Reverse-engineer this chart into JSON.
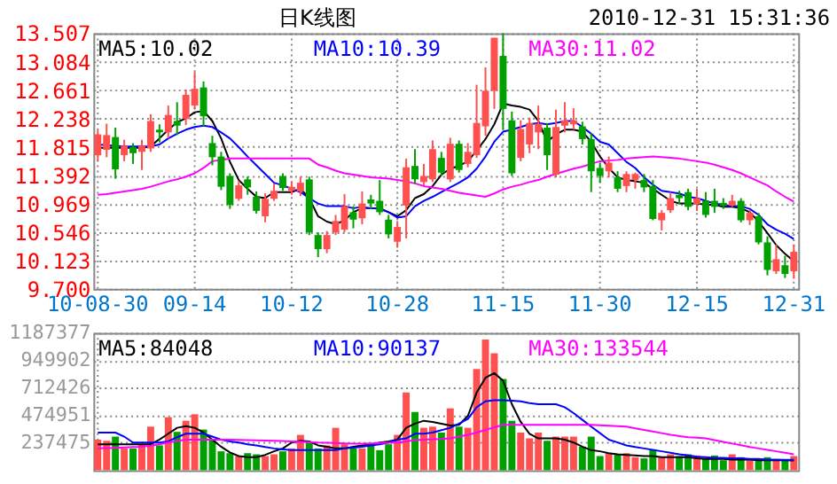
{
  "chart_data": [
    {
      "type": "candlestick",
      "title": "日K线图",
      "subtitle": "2010-12-31 15:31:36",
      "categories": [
        "10-08-30",
        null,
        null,
        null,
        null,
        null,
        null,
        null,
        null,
        null,
        null,
        "09-14",
        null,
        null,
        null,
        null,
        null,
        null,
        null,
        null,
        null,
        null,
        "10-12",
        null,
        null,
        null,
        null,
        null,
        null,
        null,
        null,
        null,
        null,
        null,
        "10-28",
        null,
        null,
        null,
        null,
        null,
        null,
        null,
        null,
        null,
        null,
        null,
        "11-15",
        null,
        null,
        null,
        null,
        null,
        null,
        null,
        null,
        null,
        null,
        "11-30",
        null,
        null,
        null,
        null,
        null,
        null,
        null,
        null,
        null,
        null,
        "12-15",
        null,
        null,
        null,
        null,
        null,
        null,
        null,
        null,
        null,
        null,
        "12-31"
      ],
      "ohlc": [
        [
          11.69,
          12.07,
          11.6,
          12.0
        ],
        [
          11.77,
          12.16,
          11.66,
          11.99
        ],
        [
          11.96,
          12.1,
          11.34,
          11.48
        ],
        [
          11.69,
          11.92,
          11.6,
          11.83
        ],
        [
          11.81,
          11.87,
          11.56,
          11.72
        ],
        [
          11.74,
          11.92,
          11.47,
          11.83
        ],
        [
          11.79,
          12.3,
          11.74,
          12.2
        ],
        [
          12.07,
          12.15,
          11.88,
          12.03
        ],
        [
          12.03,
          12.43,
          11.94,
          12.29
        ],
        [
          12.2,
          12.48,
          11.99,
          12.13
        ],
        [
          12.23,
          12.67,
          12.14,
          12.59
        ],
        [
          12.43,
          12.93,
          12.37,
          12.68
        ],
        [
          12.7,
          12.79,
          12.12,
          12.27
        ],
        [
          11.87,
          11.98,
          11.54,
          11.66
        ],
        [
          11.67,
          11.74,
          11.17,
          11.22
        ],
        [
          11.38,
          11.42,
          10.89,
          10.95
        ],
        [
          11.04,
          11.31,
          11.01,
          11.24
        ],
        [
          11.33,
          11.37,
          11.1,
          11.21
        ],
        [
          11.07,
          11.15,
          10.82,
          10.86
        ],
        [
          10.78,
          11.12,
          10.69,
          11.04
        ],
        [
          11.04,
          11.27,
          11.01,
          11.16
        ],
        [
          11.38,
          11.42,
          11.16,
          11.2
        ],
        [
          11.16,
          11.3,
          11.1,
          11.22
        ],
        [
          11.15,
          11.37,
          11.08,
          11.28
        ],
        [
          11.33,
          11.37,
          10.5,
          10.54
        ],
        [
          10.5,
          10.54,
          10.17,
          10.29
        ],
        [
          10.29,
          10.56,
          10.23,
          10.5
        ],
        [
          10.54,
          10.8,
          10.5,
          10.71
        ],
        [
          10.58,
          11.11,
          10.54,
          10.93
        ],
        [
          10.84,
          10.93,
          10.6,
          10.73
        ],
        [
          10.75,
          11.15,
          10.66,
          10.97
        ],
        [
          11.03,
          11.1,
          10.89,
          10.97
        ],
        [
          11.01,
          11.32,
          10.8,
          10.84
        ],
        [
          10.73,
          10.8,
          10.45,
          10.51
        ],
        [
          10.4,
          10.71,
          10.31,
          10.62
        ],
        [
          10.94,
          11.64,
          10.45,
          11.51
        ],
        [
          11.53,
          11.78,
          11.26,
          11.33
        ],
        [
          11.29,
          11.56,
          11.24,
          11.38
        ],
        [
          11.33,
          11.91,
          11.29,
          11.78
        ],
        [
          11.65,
          11.74,
          11.38,
          11.43
        ],
        [
          11.33,
          11.95,
          11.29,
          11.86
        ],
        [
          11.86,
          11.91,
          11.43,
          11.47
        ],
        [
          11.56,
          11.87,
          11.51,
          11.74
        ],
        [
          11.69,
          12.74,
          11.65,
          12.17
        ],
        [
          12.12,
          13.0,
          11.98,
          12.65
        ],
        [
          12.65,
          13.44,
          12.38,
          13.44
        ],
        [
          13.17,
          13.507,
          12.07,
          12.38
        ],
        [
          12.21,
          12.34,
          11.38,
          11.42
        ],
        [
          11.65,
          12.21,
          11.6,
          12.08
        ],
        [
          11.85,
          12.25,
          11.72,
          12.17
        ],
        [
          12.03,
          12.43,
          11.78,
          12.16
        ],
        [
          12.1,
          12.17,
          11.47,
          11.69
        ],
        [
          11.4,
          12.37,
          11.36,
          12.11
        ],
        [
          12.13,
          12.48,
          12.03,
          12.21
        ],
        [
          12.15,
          12.39,
          12.07,
          12.21
        ],
        [
          12.12,
          12.19,
          11.85,
          11.93
        ],
        [
          11.93,
          12.02,
          11.14,
          11.45
        ],
        [
          11.5,
          11.58,
          11.28,
          11.38
        ],
        [
          11.45,
          11.67,
          11.36,
          11.58
        ],
        [
          11.36,
          11.45,
          11.14,
          11.19
        ],
        [
          11.23,
          11.45,
          11.14,
          11.41
        ],
        [
          11.32,
          11.43,
          11.19,
          11.41
        ],
        [
          11.32,
          11.41,
          11.14,
          11.21
        ],
        [
          11.23,
          11.32,
          10.72,
          10.74
        ],
        [
          10.72,
          10.87,
          10.57,
          10.83
        ],
        [
          10.87,
          11.14,
          10.83,
          11.05
        ],
        [
          11.1,
          11.16,
          10.96,
          11.05
        ],
        [
          11.14,
          11.19,
          10.87,
          10.92
        ],
        [
          10.96,
          11.19,
          10.86,
          11.05
        ],
        [
          11.01,
          11.14,
          10.76,
          10.8
        ],
        [
          11.01,
          11.19,
          10.83,
          10.92
        ],
        [
          10.98,
          11.05,
          10.89,
          10.94
        ],
        [
          10.94,
          11.1,
          10.92,
          11.01
        ],
        [
          11.01,
          11.05,
          10.69,
          10.72
        ],
        [
          10.72,
          10.87,
          10.65,
          10.83
        ],
        [
          10.78,
          10.83,
          10.36,
          10.39
        ],
        [
          10.39,
          10.48,
          9.9,
          9.98
        ],
        [
          9.96,
          10.36,
          9.92,
          10.14
        ],
        [
          10.05,
          10.19,
          9.86,
          9.92
        ],
        [
          9.96,
          10.36,
          9.85,
          10.25
        ]
      ],
      "colors": [
        "#ff5050",
        "#ff5050",
        "#00a000",
        "#ff5050",
        "#00a000",
        "#ff5050",
        "#ff5050",
        "#00a000",
        "#ff5050",
        "#00a000",
        "#ff5050",
        "#ff5050",
        "#00a000",
        "#00a000",
        "#00a000",
        "#00a000",
        "#ff5050",
        "#00a000",
        "#00a000",
        "#ff5050",
        "#ff5050",
        "#00a000",
        "#ff5050",
        "#ff5050",
        "#00a000",
        "#00a000",
        "#ff5050",
        "#ff5050",
        "#ff5050",
        "#00a000",
        "#ff5050",
        "#00a000",
        "#00a000",
        "#00a000",
        "#ff5050",
        "#ff5050",
        "#00a000",
        "#ff5050",
        "#ff5050",
        "#00a000",
        "#ff5050",
        "#00a000",
        "#ff5050",
        "#ff5050",
        "#ff5050",
        "#ff5050",
        "#00a000",
        "#00a000",
        "#ff5050",
        "#ff5050",
        "#ff5050",
        "#00a000",
        "#ff5050",
        "#ff5050",
        "#ff5050",
        "#00a000",
        "#00a000",
        "#00a000",
        "#ff5050",
        "#00a000",
        "#ff5050",
        "#ff5050",
        "#00a000",
        "#00a000",
        "#ff5050",
        "#ff5050",
        "#00a000",
        "#00a000",
        "#ff5050",
        "#00a000",
        "#00a000",
        "#00a000",
        "#ff5050",
        "#00a000",
        "#ff5050",
        "#00a000",
        "#00a000",
        "#ff5050",
        "#00a000",
        "#ff5050"
      ],
      "series": [
        {
          "name": "MA5:10.02",
          "type": "line",
          "color": "#000000",
          "values": [
            11.8,
            11.8,
            11.8,
            11.8,
            11.8,
            11.8,
            11.82,
            11.94,
            12.07,
            12.18,
            12.24,
            12.33,
            12.35,
            12.2,
            11.94,
            11.59,
            11.32,
            11.19,
            11.07,
            11.05,
            11.14,
            11.14,
            11.14,
            11.19,
            11.05,
            10.78,
            10.7,
            10.66,
            10.72,
            10.84,
            10.9,
            10.9,
            10.9,
            10.84,
            10.78,
            10.87,
            11.05,
            11.11,
            11.23,
            11.4,
            11.49,
            11.53,
            11.6,
            11.76,
            11.93,
            12.15,
            12.46,
            12.43,
            12.41,
            12.37,
            12.2,
            11.89,
            12.0,
            12.07,
            12.07,
            12.04,
            11.89,
            11.67,
            11.5,
            11.36,
            11.32,
            11.3,
            11.28,
            11.19,
            11.1,
            11.01,
            10.97,
            10.97,
            10.97,
            10.95,
            10.95,
            10.92,
            10.92,
            10.9,
            10.84,
            10.7,
            10.53,
            10.35,
            10.22,
            10.11
          ]
        },
        {
          "name": "MA10:10.39",
          "type": "line",
          "color": "#0000ff",
          "values": [
            11.85,
            11.84,
            11.83,
            11.82,
            11.82,
            11.82,
            11.82,
            11.85,
            11.94,
            12.01,
            12.07,
            12.11,
            12.13,
            12.11,
            12.03,
            11.94,
            11.81,
            11.67,
            11.54,
            11.41,
            11.28,
            11.24,
            11.19,
            11.14,
            11.05,
            10.97,
            10.93,
            10.93,
            10.93,
            10.9,
            10.92,
            10.9,
            10.89,
            10.84,
            10.76,
            10.78,
            10.93,
            11.01,
            11.07,
            11.14,
            11.21,
            11.28,
            11.36,
            11.49,
            11.67,
            11.89,
            12.04,
            12.07,
            12.11,
            12.15,
            12.17,
            12.15,
            12.17,
            12.2,
            12.2,
            12.11,
            12.01,
            11.89,
            11.85,
            11.72,
            11.59,
            11.5,
            11.36,
            11.25,
            11.16,
            11.14,
            11.12,
            11.07,
            11.05,
            11.01,
            10.97,
            10.95,
            10.93,
            10.93,
            10.89,
            10.8,
            10.66,
            10.58,
            10.52,
            10.44
          ]
        },
        {
          "name": "MA30:11.02",
          "type": "line",
          "color": "#ff00ff",
          "values": [
            11.1,
            11.11,
            11.13,
            11.15,
            11.17,
            11.19,
            11.22,
            11.26,
            11.3,
            11.33,
            11.37,
            11.42,
            11.5,
            11.6,
            11.62,
            11.64,
            11.64,
            11.64,
            11.64,
            11.64,
            11.64,
            11.64,
            11.64,
            11.64,
            11.64,
            11.55,
            11.51,
            11.46,
            11.42,
            11.4,
            11.38,
            11.36,
            11.35,
            11.34,
            11.32,
            11.3,
            11.27,
            11.23,
            11.21,
            11.19,
            11.16,
            11.13,
            11.11,
            11.09,
            11.07,
            11.12,
            11.18,
            11.22,
            11.25,
            11.29,
            11.32,
            11.37,
            11.41,
            11.45,
            11.49,
            11.52,
            11.56,
            11.6,
            11.61,
            11.62,
            11.64,
            11.65,
            11.66,
            11.67,
            11.66,
            11.65,
            11.64,
            11.62,
            11.6,
            11.58,
            11.55,
            11.51,
            11.47,
            11.42,
            11.36,
            11.3,
            11.24,
            11.15,
            11.07,
            11.0
          ]
        }
      ],
      "ylim": [
        9.7,
        13.507
      ],
      "yticks": [
        {
          "value": 9.7,
          "label": "9.700"
        },
        10.123,
        10.546,
        10.969,
        11.392,
        11.815,
        12.238,
        12.661,
        13.084,
        13.507
      ],
      "grid": true,
      "legend": "top"
    },
    {
      "type": "bar",
      "categories": [
        null,
        null,
        null,
        null,
        null,
        null,
        null,
        null,
        null,
        null,
        null,
        null,
        null,
        null,
        null,
        null,
        null,
        null,
        null,
        null,
        null,
        null,
        null,
        null,
        null,
        null,
        null,
        null,
        null,
        null,
        null,
        null,
        null,
        null,
        null,
        null,
        null,
        null,
        null,
        null,
        null,
        null,
        null,
        null,
        null,
        null,
        null,
        null,
        null,
        null,
        null,
        null,
        null,
        null,
        null,
        null,
        null,
        null,
        null,
        null,
        null,
        null,
        null,
        null,
        null,
        null,
        null,
        null,
        null,
        null,
        null,
        null,
        null,
        null,
        null,
        null,
        null,
        null,
        null,
        null
      ],
      "series": [
        {
          "type": "bar",
          "values": [
            264000,
            254000,
            290000,
            188000,
            188000,
            224000,
            376000,
            214000,
            458000,
            331000,
            427000,
            483000,
            351000,
            264000,
            163000,
            147000,
            122000,
            147000,
            137000,
            122000,
            137000,
            163000,
            188000,
            305000,
            239000,
            188000,
            214000,
            366000,
            224000,
            188000,
            188000,
            214000,
            173000,
            224000,
            305000,
            671000,
            503000,
            366000,
            376000,
            325000,
            534000,
            376000,
            366000,
            875000,
            1130000,
            1010000,
            788000,
            427000,
            325000,
            275000,
            325000,
            254000,
            290000,
            290000,
            290000,
            203000,
            290000,
            122000,
            147000,
            137000,
            147000,
            112000,
            102000,
            173000,
            112000,
            137000,
            122000,
            137000,
            127000,
            102000,
            127000,
            86000,
            137000,
            112000,
            86000,
            102000,
            112000,
            86000,
            86000,
            122000
          ],
          "colors": [
            "#ff5050",
            "#ff5050",
            "#00a000",
            "#ff5050",
            "#00a000",
            "#ff5050",
            "#ff5050",
            "#00a000",
            "#ff5050",
            "#00a000",
            "#ff5050",
            "#ff5050",
            "#00a000",
            "#00a000",
            "#00a000",
            "#00a000",
            "#ff5050",
            "#00a000",
            "#00a000",
            "#ff5050",
            "#ff5050",
            "#00a000",
            "#ff5050",
            "#ff5050",
            "#00a000",
            "#00a000",
            "#ff5050",
            "#ff5050",
            "#ff5050",
            "#00a000",
            "#ff5050",
            "#00a000",
            "#00a000",
            "#00a000",
            "#ff5050",
            "#ff5050",
            "#00a000",
            "#ff5050",
            "#ff5050",
            "#00a000",
            "#ff5050",
            "#00a000",
            "#ff5050",
            "#ff5050",
            "#ff5050",
            "#ff5050",
            "#00a000",
            "#00a000",
            "#ff5050",
            "#ff5050",
            "#ff5050",
            "#00a000",
            "#ff5050",
            "#ff5050",
            "#ff5050",
            "#00a000",
            "#00a000",
            "#00a000",
            "#ff5050",
            "#00a000",
            "#ff5050",
            "#ff5050",
            "#00a000",
            "#00a000",
            "#ff5050",
            "#ff5050",
            "#00a000",
            "#00a000",
            "#ff5050",
            "#00a000",
            "#00a000",
            "#00a000",
            "#ff5050",
            "#00a000",
            "#ff5050",
            "#00a000",
            "#00a000",
            "#ff5050",
            "#00a000",
            "#ff5050"
          ]
        },
        {
          "name": "MA5:84048",
          "type": "line",
          "color": "#000000",
          "values": [
            224000,
            224000,
            224000,
            224000,
            224000,
            224000,
            224000,
            264000,
            315000,
            366000,
            381000,
            366000,
            325000,
            264000,
            203000,
            153000,
            122000,
            112000,
            112000,
            132000,
            163000,
            188000,
            239000,
            254000,
            249000,
            214000,
            203000,
            188000,
            188000,
            203000,
            214000,
            224000,
            239000,
            249000,
            264000,
            366000,
            402000,
            427000,
            417000,
            402000,
            386000,
            392000,
            468000,
            671000,
            798000,
            839000,
            773000,
            570000,
            417000,
            315000,
            275000,
            275000,
            275000,
            264000,
            239000,
            203000,
            173000,
            163000,
            147000,
            137000,
            132000,
            127000,
            122000,
            122000,
            112000,
            112000,
            112000,
            112000,
            102000,
            97000,
            97000,
            97000,
            92000,
            92000,
            92000,
            86000,
            86000,
            86000,
            86000,
            84000
          ]
        },
        {
          "name": "MA10:90137",
          "type": "line",
          "color": "#0000ff",
          "values": [
            325000,
            325000,
            325000,
            290000,
            239000,
            239000,
            239000,
            239000,
            249000,
            285000,
            315000,
            315000,
            315000,
            290000,
            264000,
            249000,
            239000,
            224000,
            214000,
            200000,
            188000,
            180000,
            173000,
            173000,
            173000,
            173000,
            173000,
            173000,
            188000,
            195000,
            203000,
            214000,
            224000,
            239000,
            264000,
            275000,
            315000,
            315000,
            325000,
            346000,
            366000,
            403000,
            442000,
            544000,
            595000,
            605000,
            605000,
            600000,
            595000,
            580000,
            570000,
            570000,
            570000,
            544000,
            493000,
            435000,
            376000,
            320000,
            264000,
            240000,
            214000,
            200000,
            188000,
            175000,
            163000,
            150000,
            137000,
            127000,
            117000,
            112000,
            107000,
            107000,
            102000,
            102000,
            97000,
            97000,
            92000,
            92000,
            90000,
            90000
          ]
        },
        {
          "name": "MA30:133544",
          "type": "line",
          "color": "#ff00ff",
          "values": [
            188000,
            190000,
            193000,
            196000,
            200000,
            203000,
            212000,
            224000,
            239000,
            252000,
            264000,
            264000,
            264000,
            264000,
            264000,
            264000,
            262000,
            260000,
            258000,
            256000,
            254000,
            252000,
            249000,
            246000,
            243000,
            239000,
            237000,
            234000,
            231000,
            229000,
            229000,
            231000,
            234000,
            237000,
            239000,
            249000,
            259000,
            264000,
            268000,
            270000,
            275000,
            290000,
            305000,
            325000,
            348000,
            370000,
            392000,
            392000,
            392000,
            392000,
            392000,
            392000,
            392000,
            392000,
            392000,
            392000,
            392000,
            388000,
            384000,
            380000,
            376000,
            362000,
            348000,
            334000,
            320000,
            305000,
            295000,
            285000,
            280000,
            275000,
            260000,
            245000,
            230000,
            215000,
            200000,
            188000,
            175000,
            163000,
            150000,
            137000
          ]
        }
      ],
      "ylim": [
        0,
        1187377
      ],
      "yticks": [
        237475,
        474951,
        712426,
        949902,
        1187377
      ],
      "grid": true,
      "legend": "top",
      "tick_labels": "y"
    }
  ]
}
